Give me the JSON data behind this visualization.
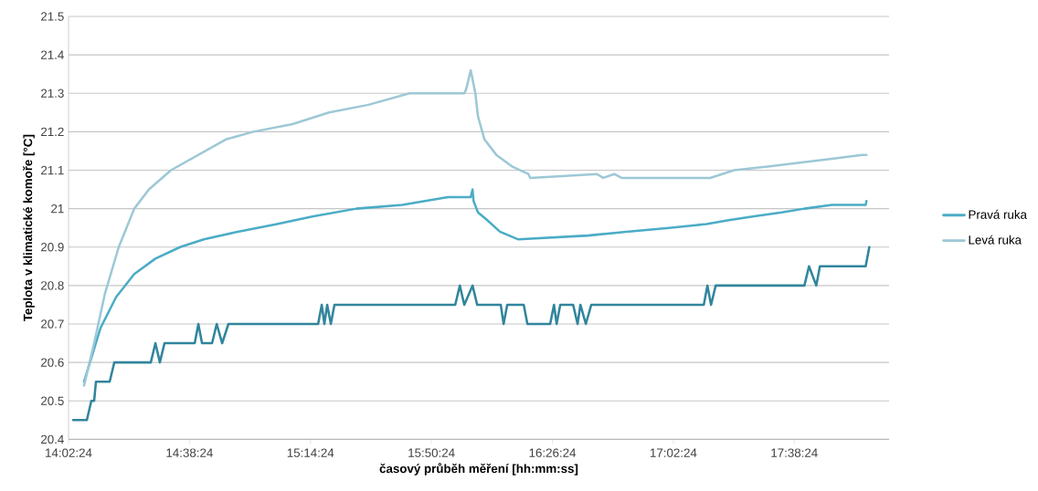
{
  "chart_data": {
    "type": "line",
    "xlabel": "časový průběh měření [hh:mm:ss]",
    "ylabel": "Teplota v klimatické komoře [°C]",
    "xlim": [
      14.04,
      18.11
    ],
    "xticks": [
      {
        "value": 14.04,
        "label": "14:02:24"
      },
      {
        "value": 14.64,
        "label": "14:38:24"
      },
      {
        "value": 15.24,
        "label": "15:14:24"
      },
      {
        "value": 15.84,
        "label": "15:50:24"
      },
      {
        "value": 16.44,
        "label": "16:26:24"
      },
      {
        "value": 17.04,
        "label": "17:02:24"
      },
      {
        "value": 17.64,
        "label": "17:38:24"
      }
    ],
    "ylim": [
      20.4,
      21.5
    ],
    "yticks": [
      20.4,
      20.5,
      20.6,
      20.7,
      20.8,
      20.9,
      21,
      21.1,
      21.2,
      21.3,
      21.4,
      21.5
    ],
    "grid": "y",
    "legend": "right",
    "marker": "none",
    "line_style": "solid",
    "series": [
      {
        "color": "#31859c",
        "x": [
          14.063,
          14.131,
          14.153,
          14.167,
          14.176,
          14.244,
          14.267,
          14.448,
          14.471,
          14.493,
          14.516,
          14.666,
          14.684,
          14.702,
          14.752,
          14.775,
          14.802,
          14.833,
          15.278,
          15.296,
          15.309,
          15.323,
          15.341,
          15.359,
          15.958,
          15.981,
          16.003,
          16.044,
          16.067,
          16.184,
          16.198,
          16.216,
          16.298,
          16.316,
          16.429,
          16.448,
          16.461,
          16.479,
          16.543,
          16.565,
          16.579,
          16.606,
          16.633,
          17.191,
          17.209,
          17.227,
          17.25,
          17.69,
          17.713,
          17.749,
          17.767,
          17.994,
          18.012
        ],
        "values": [
          20.45,
          20.45,
          20.5,
          20.5,
          20.55,
          20.55,
          20.6,
          20.6,
          20.65,
          20.6,
          20.65,
          20.65,
          20.7,
          20.65,
          20.65,
          20.7,
          20.65,
          20.7,
          20.7,
          20.75,
          20.7,
          20.75,
          20.7,
          20.75,
          20.75,
          20.8,
          20.75,
          20.8,
          20.75,
          20.75,
          20.7,
          20.75,
          20.75,
          20.7,
          20.7,
          20.75,
          20.7,
          20.75,
          20.75,
          20.7,
          20.75,
          20.7,
          20.75,
          20.75,
          20.8,
          20.75,
          20.8,
          20.8,
          20.85,
          20.8,
          20.85,
          20.85,
          20.9
        ]
      },
      {
        "name": "Pravá ruka",
        "color": "#4bacc6",
        "x": [
          14.117,
          14.199,
          14.276,
          14.366,
          14.471,
          14.593,
          14.711,
          14.879,
          15.074,
          15.255,
          15.468,
          15.695,
          15.922,
          16.035,
          16.044,
          16.049,
          16.071,
          16.117,
          16.18,
          16.271,
          16.615,
          16.806,
          17.019,
          17.205,
          17.314,
          17.441,
          17.577,
          17.69,
          17.826,
          17.994,
          17.998
        ],
        "values": [
          20.55,
          20.69,
          20.77,
          20.83,
          20.87,
          20.9,
          20.92,
          20.94,
          20.96,
          20.98,
          21.0,
          21.01,
          21.03,
          21.03,
          21.05,
          21.02,
          20.99,
          20.97,
          20.94,
          20.92,
          20.93,
          20.94,
          20.95,
          20.96,
          20.97,
          20.98,
          20.99,
          21.0,
          21.01,
          21.01,
          21.02
        ]
      },
      {
        "name": "Levá ruka",
        "color": "#9dc8d6",
        "x": [
          14.117,
          14.167,
          14.221,
          14.289,
          14.366,
          14.439,
          14.548,
          14.684,
          14.82,
          14.956,
          15.151,
          15.332,
          15.527,
          15.731,
          16.003,
          16.012,
          16.035,
          16.058,
          16.071,
          16.103,
          16.162,
          16.239,
          16.321,
          16.33,
          16.661,
          16.692,
          16.747,
          16.783,
          17.223,
          17.341,
          17.518,
          17.676,
          17.835,
          17.976,
          17.998
        ],
        "values": [
          20.54,
          20.65,
          20.78,
          20.9,
          21.0,
          21.05,
          21.1,
          21.14,
          21.18,
          21.2,
          21.22,
          21.25,
          21.27,
          21.3,
          21.3,
          21.31,
          21.36,
          21.3,
          21.24,
          21.18,
          21.14,
          21.11,
          21.09,
          21.08,
          21.09,
          21.08,
          21.09,
          21.08,
          21.08,
          21.1,
          21.11,
          21.12,
          21.13,
          21.14,
          21.14
        ]
      }
    ]
  }
}
